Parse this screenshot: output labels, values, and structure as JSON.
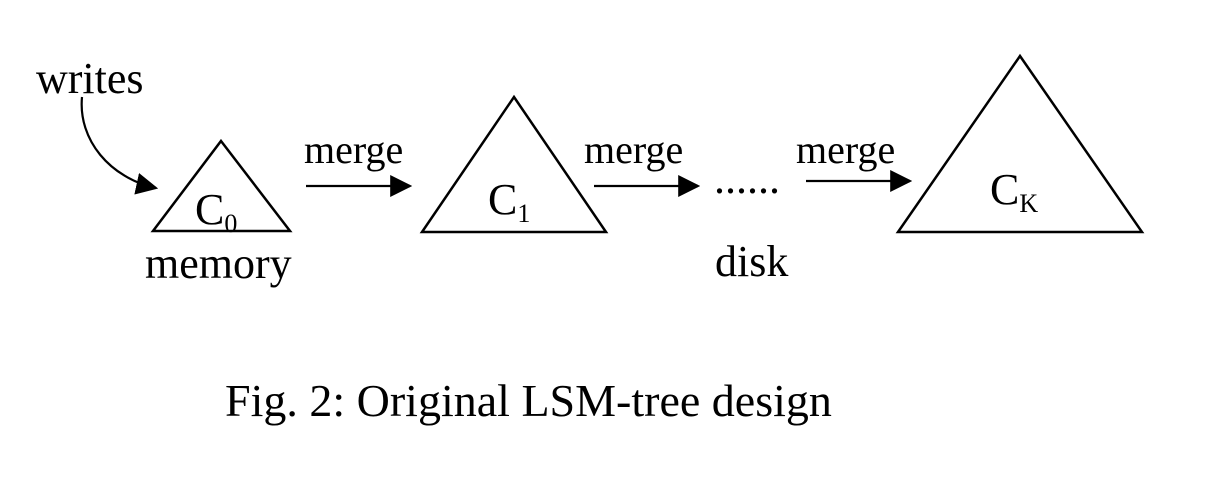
{
  "diagram": {
    "input_label": "writes",
    "components": [
      {
        "id": "c0",
        "base": "C",
        "subscript": "0"
      },
      {
        "id": "c1",
        "base": "C",
        "subscript": "1"
      },
      {
        "id": "ck",
        "base": "C",
        "subscript": "K"
      }
    ],
    "edge_labels": [
      "merge",
      "merge",
      "merge"
    ],
    "ellipsis": "......",
    "region_labels": {
      "memory": "memory",
      "disk": "disk"
    }
  },
  "caption": "Fig. 2: Original LSM-tree design"
}
